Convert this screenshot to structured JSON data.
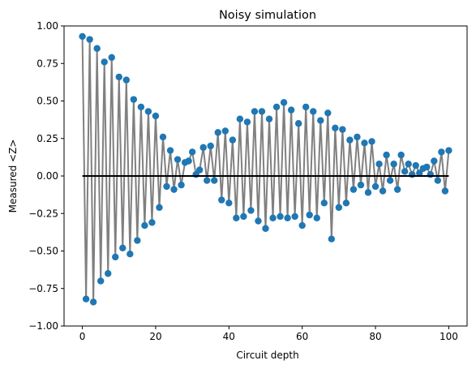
{
  "chart_data": {
    "type": "scatter",
    "title": "Noisy simulation",
    "xlabel": "Circuit depth",
    "ylabel": "Measured <Z>",
    "xlim": [
      -5,
      105
    ],
    "ylim": [
      -1.0,
      1.0
    ],
    "xticks": [
      0,
      20,
      40,
      60,
      80,
      100
    ],
    "yticks": [
      -1.0,
      -0.75,
      -0.5,
      -0.25,
      0.0,
      0.25,
      0.5,
      0.75,
      1.0
    ],
    "xtick_labels": [
      "0",
      "20",
      "40",
      "60",
      "80",
      "100"
    ],
    "ytick_labels": [
      "−1.00",
      "−0.75",
      "−0.50",
      "−0.25",
      "0.00",
      "0.25",
      "0.50",
      "0.75",
      "1.00"
    ],
    "grid": false,
    "connector_color": "#808080",
    "marker_color": "#1f77b4",
    "reference_line": {
      "y": 0.0,
      "x_range": [
        0,
        100
      ],
      "color": "#000000"
    },
    "series": [
      {
        "x": [
          0,
          1,
          2,
          3,
          4,
          5,
          6,
          7,
          8,
          9,
          10,
          11,
          12,
          13,
          14,
          15,
          16,
          17,
          18,
          19,
          20,
          21,
          22,
          23,
          24,
          25,
          26,
          27,
          28,
          29,
          30,
          31,
          32,
          33,
          34,
          35,
          36,
          37,
          38,
          39,
          40,
          41,
          42,
          43,
          44,
          45,
          46,
          47,
          48,
          49,
          50,
          51,
          52,
          53,
          54,
          55,
          56,
          57,
          58,
          59,
          60,
          61,
          62,
          63,
          64,
          65,
          66,
          67,
          68,
          69,
          70,
          71,
          72,
          73,
          74,
          75,
          76,
          77,
          78,
          79,
          80,
          81,
          82,
          83,
          84,
          85,
          86,
          87,
          88,
          89,
          90,
          91,
          92,
          93,
          94,
          95,
          96,
          97,
          98,
          99,
          100
        ],
        "y": [
          0.93,
          -0.82,
          0.91,
          -0.84,
          0.85,
          -0.7,
          0.76,
          -0.65,
          0.79,
          -0.54,
          0.66,
          -0.48,
          0.64,
          -0.52,
          0.51,
          -0.43,
          0.46,
          -0.33,
          0.43,
          -0.31,
          0.4,
          -0.21,
          0.26,
          -0.07,
          0.17,
          -0.09,
          0.11,
          -0.06,
          0.09,
          0.1,
          0.16,
          0.01,
          0.04,
          0.19,
          -0.03,
          0.2,
          -0.03,
          0.29,
          -0.16,
          0.3,
          -0.18,
          0.24,
          -0.28,
          0.38,
          -0.27,
          0.36,
          -0.23,
          0.43,
          -0.3,
          0.43,
          -0.35,
          0.38,
          -0.28,
          0.46,
          -0.27,
          0.49,
          -0.28,
          0.44,
          -0.27,
          0.35,
          -0.33,
          0.46,
          -0.26,
          0.43,
          -0.28,
          0.37,
          -0.18,
          0.42,
          -0.42,
          0.32,
          -0.21,
          0.31,
          -0.18,
          0.24,
          -0.09,
          0.26,
          -0.06,
          0.22,
          -0.11,
          0.23,
          -0.07,
          0.08,
          -0.1,
          0.14,
          -0.03,
          0.08,
          -0.09,
          0.14,
          0.03,
          0.08,
          0.01,
          0.07,
          0.02,
          0.05,
          0.06,
          0.01,
          0.1,
          -0.03,
          0.16,
          -0.1,
          0.17
        ]
      }
    ]
  }
}
